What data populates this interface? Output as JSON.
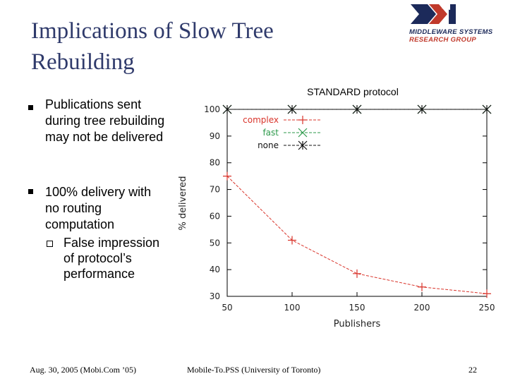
{
  "slide": {
    "title": "Implications of Slow Tree Rebuilding",
    "logo": {
      "line1": "MIDDLEWARE SYSTEMS",
      "line2": "RESEARCH GROUP"
    },
    "bullets": [
      {
        "text": "Publications sent during tree rebuilding may not be delivered"
      },
      {
        "text": "100% delivery with no routing computation",
        "sub": [
          "False impression of protocol’s performance"
        ]
      }
    ],
    "footer": {
      "left": "Aug. 30, 2005 (Mobi.Com ’05)",
      "center": "Mobile-To.PSS (University of Toronto)",
      "page": "22"
    }
  },
  "chart_data": {
    "type": "line",
    "title": "STANDARD protocol",
    "xlabel": "Publishers",
    "ylabel": "% delivered",
    "x": [
      50,
      100,
      150,
      200,
      250
    ],
    "ylim": [
      30,
      100
    ],
    "yticks": [
      30,
      40,
      50,
      60,
      70,
      80,
      90,
      100
    ],
    "legend_position": "top-left",
    "series": [
      {
        "name": "complex",
        "color": "#d9342b",
        "marker": "+",
        "values": [
          75,
          51,
          38.5,
          33.5,
          31
        ]
      },
      {
        "name": "fast",
        "color": "#2d9a4b",
        "marker": "x",
        "values": [
          100,
          100,
          100,
          100,
          100
        ]
      },
      {
        "name": "none",
        "color": "#111111",
        "marker": "*",
        "values": [
          100,
          100,
          100,
          100,
          100
        ]
      }
    ]
  }
}
